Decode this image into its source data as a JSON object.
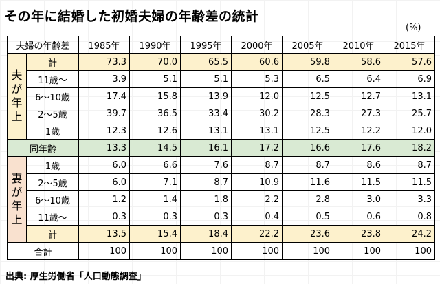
{
  "title": "その年に結婚した初婚夫婦の年齢差の統計",
  "unit": "(%)",
  "header": {
    "corner": "夫婦の年齢差",
    "years": [
      "1985年",
      "1990年",
      "1995年",
      "2000年",
      "2005年",
      "2010年",
      "2015年"
    ]
  },
  "groups": {
    "husband": "夫が年上",
    "wife": "妻が年上"
  },
  "rows": {
    "hus_total": {
      "label": "計",
      "values": [
        "73.3",
        "70.0",
        "65.5",
        "60.6",
        "59.8",
        "58.6",
        "57.6"
      ]
    },
    "hus_11": {
      "label": "11歳～",
      "values": [
        "3.9",
        "5.1",
        "5.1",
        "5.3",
        "6.5",
        "6.4",
        "6.9"
      ]
    },
    "hus_6_10": {
      "label": "6～10歳",
      "values": [
        "17.4",
        "15.8",
        "13.9",
        "12.0",
        "12.5",
        "12.7",
        "13.1"
      ]
    },
    "hus_2_5": {
      "label": "2～5歳",
      "values": [
        "39.7",
        "36.5",
        "33.4",
        "30.2",
        "28.3",
        "27.3",
        "25.7"
      ]
    },
    "hus_1": {
      "label": "1歳",
      "values": [
        "12.3",
        "12.6",
        "13.1",
        "13.1",
        "12.5",
        "12.2",
        "12.0"
      ]
    },
    "same": {
      "label": "同年齢",
      "values": [
        "13.3",
        "14.5",
        "16.1",
        "17.2",
        "16.6",
        "17.6",
        "18.2"
      ]
    },
    "wife_1": {
      "label": "1歳",
      "values": [
        "6.0",
        "6.6",
        "7.6",
        "8.7",
        "8.7",
        "8.6",
        "8.7"
      ]
    },
    "wife_2_5": {
      "label": "2～5歳",
      "values": [
        "6.0",
        "7.1",
        "8.7",
        "10.9",
        "11.6",
        "11.5",
        "11.5"
      ]
    },
    "wife_6_10": {
      "label": "6～10歳",
      "values": [
        "1.2",
        "1.4",
        "1.8",
        "2.2",
        "2.8",
        "3.0",
        "3.3"
      ]
    },
    "wife_11": {
      "label": "11歳～",
      "values": [
        "0.3",
        "0.3",
        "0.3",
        "0.4",
        "0.5",
        "0.6",
        "0.8"
      ]
    },
    "wife_total": {
      "label": "計",
      "values": [
        "13.5",
        "15.4",
        "18.4",
        "22.2",
        "23.6",
        "23.8",
        "24.2"
      ]
    },
    "total": {
      "label": "合計",
      "values": [
        "100",
        "100",
        "100",
        "100",
        "100",
        "100",
        "100"
      ]
    }
  },
  "source": "出典: 厚生労働省「人口動態調査」"
}
